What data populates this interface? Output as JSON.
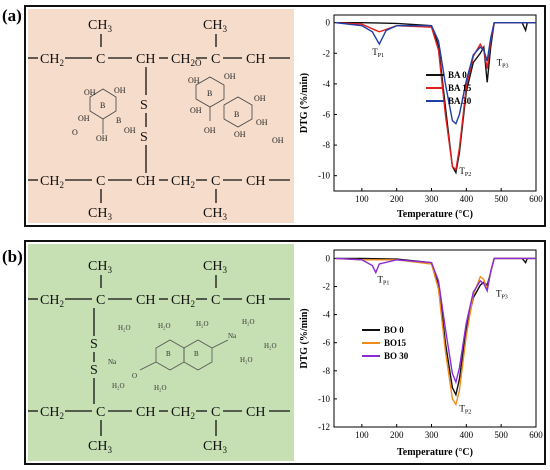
{
  "panel_a": {
    "label": "(a)"
  },
  "panel_b": {
    "label": "(b)"
  },
  "structure": {
    "ch3": "CH",
    "ch2": "CH",
    "c": "C",
    "ch": "CH",
    "s": "S",
    "b": "B",
    "oh": "OH",
    "o": "O",
    "na": "Na",
    "water": "H₂O",
    "sub2": "2",
    "sub3": "3",
    "sub2o": "2O"
  },
  "chart_data": [
    {
      "type": "line",
      "xlabel": "Temperature (°C)",
      "ylabel": "DTG (%/min)",
      "xlim": [
        20,
        600
      ],
      "ylim": [
        -11,
        0.5
      ],
      "xticks": [
        100,
        200,
        300,
        400,
        500,
        600
      ],
      "yticks": [
        0,
        -2,
        -4,
        -6,
        -8,
        -10
      ],
      "legend_position": "center-right",
      "annotations": [
        {
          "text": "T",
          "sub": "P1",
          "x": 130,
          "y": -2.1
        },
        {
          "text": "T",
          "sub": "P2",
          "x": 380,
          "y": -9.9
        },
        {
          "text": "T",
          "sub": "P3",
          "x": 487,
          "y": -2.8
        }
      ],
      "series": [
        {
          "name": "BA 0",
          "color": "#111111",
          "x": [
            25,
            100,
            200,
            300,
            320,
            340,
            360,
            370,
            380,
            400,
            420,
            440,
            450,
            460,
            470,
            480,
            500,
            560,
            570,
            575,
            600
          ],
          "y": [
            0,
            0,
            -0.05,
            -0.2,
            -1.5,
            -5.5,
            -9.4,
            -9.8,
            -8.5,
            -4.5,
            -2.6,
            -2.0,
            -1.6,
            -3.9,
            -1.6,
            0,
            0,
            0,
            -0.5,
            0,
            0
          ]
        },
        {
          "name": "BA 15",
          "color": "#e02020",
          "x": [
            25,
            100,
            140,
            150,
            200,
            300,
            320,
            340,
            360,
            370,
            380,
            400,
            420,
            440,
            450,
            460,
            470,
            480,
            500,
            560,
            600
          ],
          "y": [
            0,
            -0.1,
            -0.5,
            -0.6,
            -0.2,
            -0.3,
            -1.8,
            -6.0,
            -9.4,
            -9.6,
            -8.2,
            -4.2,
            -2.2,
            -1.4,
            -1.8,
            -3.0,
            -1.2,
            0,
            0,
            0,
            0
          ]
        },
        {
          "name": "BA 30",
          "color": "#1f3fa6",
          "x": [
            25,
            100,
            130,
            150,
            170,
            200,
            300,
            320,
            340,
            360,
            370,
            380,
            400,
            420,
            440,
            450,
            460,
            470,
            480,
            500,
            560,
            600
          ],
          "y": [
            0,
            -0.2,
            -0.6,
            -1.4,
            -0.5,
            -0.2,
            -0.2,
            -1.2,
            -4.0,
            -6.4,
            -6.6,
            -6.0,
            -3.8,
            -2.1,
            -1.6,
            -1.8,
            -2.5,
            -1.0,
            0,
            0,
            0,
            0
          ]
        }
      ]
    },
    {
      "type": "line",
      "xlabel": "Temperature (°C)",
      "ylabel": "DTG (%/min)",
      "xlim": [
        20,
        600
      ],
      "ylim": [
        -12,
        0.6
      ],
      "xticks": [
        100,
        200,
        300,
        400,
        500,
        600
      ],
      "yticks": [
        0,
        -2,
        -4,
        -6,
        -8,
        -10,
        -12
      ],
      "legend_position": "center-left",
      "annotations": [
        {
          "text": "T",
          "sub": "P1",
          "x": 145,
          "y": -1.7
        },
        {
          "text": "T",
          "sub": "P2",
          "x": 380,
          "y": -10.9
        },
        {
          "text": "T",
          "sub": "P3",
          "x": 485,
          "y": -2.7
        }
      ],
      "series": [
        {
          "name": "BO 0",
          "color": "#111111",
          "x": [
            25,
            100,
            200,
            300,
            320,
            340,
            360,
            370,
            380,
            400,
            420,
            440,
            450,
            460,
            470,
            480,
            500,
            560,
            570,
            575,
            600
          ],
          "y": [
            0,
            0,
            -0.05,
            -0.3,
            -1.8,
            -6.0,
            -9.2,
            -9.7,
            -8.6,
            -5.0,
            -2.8,
            -1.9,
            -1.7,
            -1.9,
            -1.0,
            0,
            0,
            0,
            -0.3,
            0,
            0
          ]
        },
        {
          "name": "BO15",
          "color": "#f08c1a",
          "x": [
            25,
            100,
            200,
            300,
            320,
            340,
            360,
            370,
            380,
            400,
            420,
            440,
            450,
            460,
            470,
            480,
            500,
            560,
            600
          ],
          "y": [
            0,
            -0.1,
            -0.1,
            -0.4,
            -2.2,
            -6.6,
            -10.0,
            -10.4,
            -9.4,
            -5.5,
            -2.6,
            -1.3,
            -1.5,
            -2.2,
            -1.0,
            0,
            0,
            0,
            0
          ]
        },
        {
          "name": "BO 30",
          "color": "#8a2bd6",
          "x": [
            25,
            100,
            130,
            140,
            150,
            200,
            300,
            320,
            340,
            360,
            370,
            380,
            400,
            420,
            440,
            450,
            460,
            470,
            480,
            500,
            560,
            600
          ],
          "y": [
            0,
            -0.1,
            -0.5,
            -1.0,
            -0.4,
            -0.1,
            -0.3,
            -1.6,
            -5.0,
            -8.2,
            -8.8,
            -7.8,
            -4.6,
            -2.4,
            -1.6,
            -1.8,
            -2.3,
            -0.9,
            0,
            0,
            0,
            0
          ]
        }
      ]
    }
  ]
}
